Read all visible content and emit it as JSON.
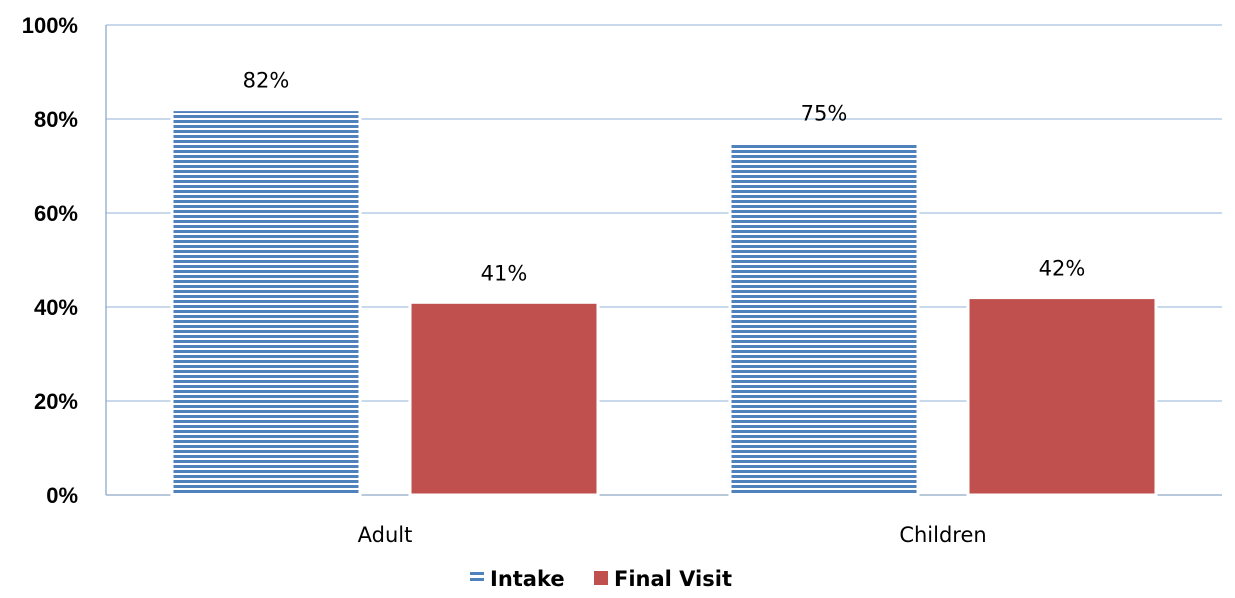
{
  "chart_data": {
    "type": "bar",
    "categories": [
      "Adult",
      "Children"
    ],
    "series": [
      {
        "name": "Intake",
        "values": [
          82,
          75
        ],
        "labels": [
          "82%",
          "75%"
        ],
        "color": "#4F81BD",
        "pattern": "horizontal-stripes"
      },
      {
        "name": "Final Visit",
        "values": [
          41,
          42
        ],
        "labels": [
          "41%",
          "42%"
        ],
        "color": "#C0504D",
        "pattern": "solid"
      }
    ],
    "ylim": [
      0,
      100
    ],
    "yticks": [
      0,
      20,
      40,
      60,
      80,
      100
    ],
    "ytick_labels": [
      "0%",
      "20%",
      "40%",
      "60%",
      "80%",
      "100%"
    ],
    "grid": true,
    "gridline_color": "#A6C2E0",
    "legend": "bottom",
    "title": "",
    "xlabel": "",
    "ylabel": ""
  }
}
